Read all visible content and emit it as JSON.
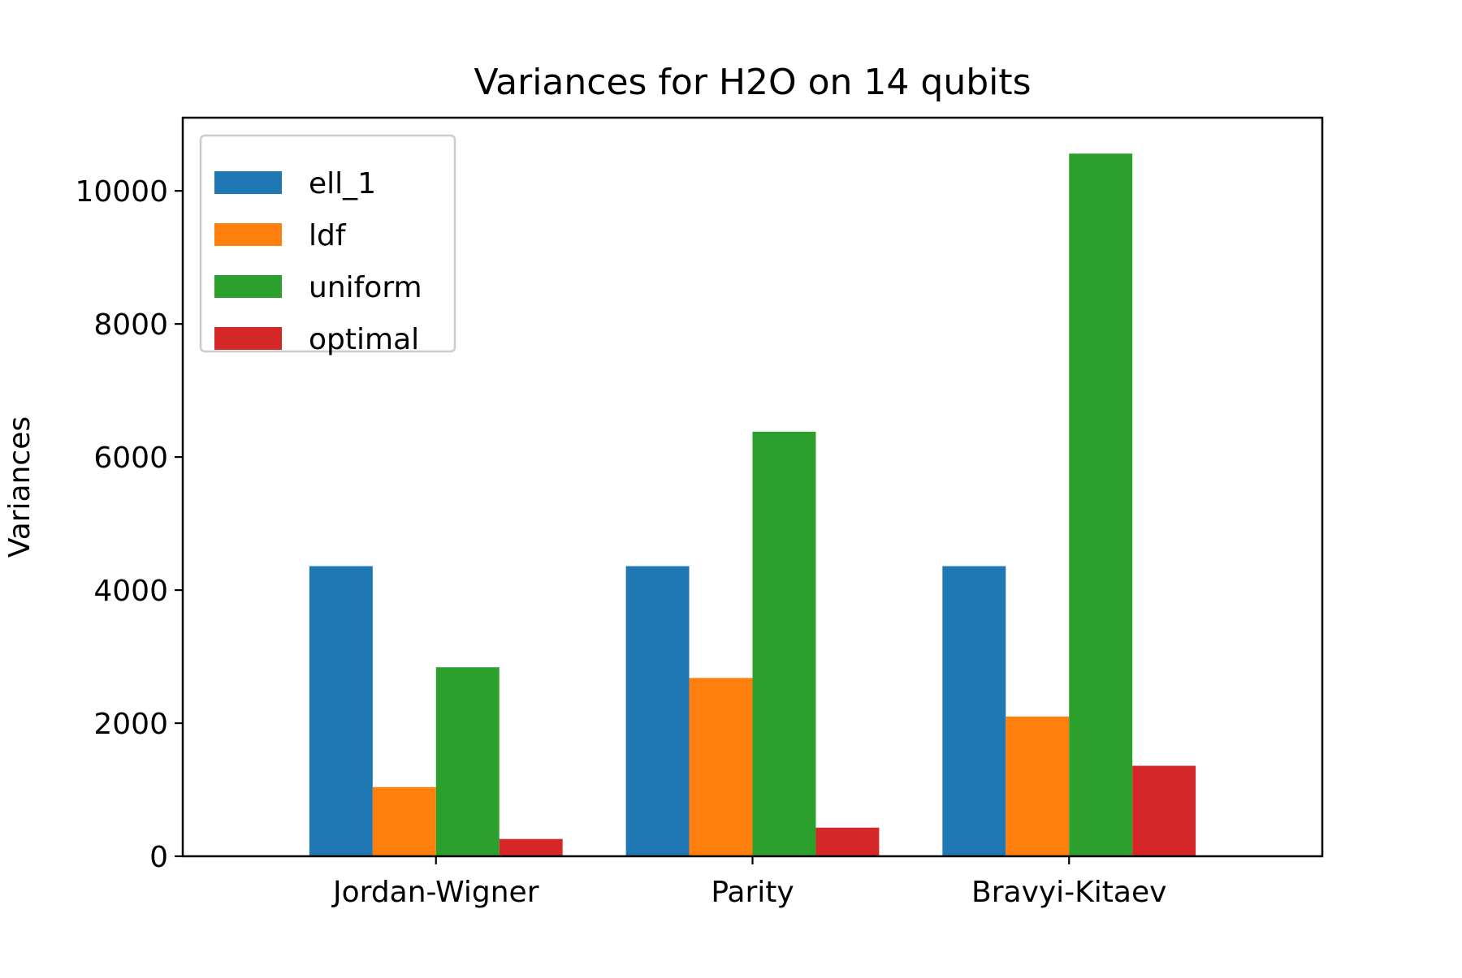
{
  "chart_data": {
    "type": "bar",
    "title": "Variances for H2O on 14 qubits",
    "xlabel": "",
    "ylabel": "Variances",
    "categories": [
      "Jordan-Wigner",
      "Parity",
      "Bravyi-Kitaev"
    ],
    "series": [
      {
        "name": "ell_1",
        "color": "#1f77b4",
        "values": [
          4360,
          4360,
          4360
        ]
      },
      {
        "name": "ldf",
        "color": "#ff7f0e",
        "values": [
          1040,
          2680,
          2100
        ]
      },
      {
        "name": "uniform",
        "color": "#2ca02c",
        "values": [
          2840,
          6380,
          10560
        ]
      },
      {
        "name": "optimal",
        "color": "#d62728",
        "values": [
          260,
          430,
          1360
        ]
      }
    ],
    "ylim": [
      0,
      11100
    ],
    "yticks": [
      0,
      2000,
      4000,
      6000,
      8000,
      10000
    ],
    "grid": false,
    "legend_position": "top-left"
  }
}
